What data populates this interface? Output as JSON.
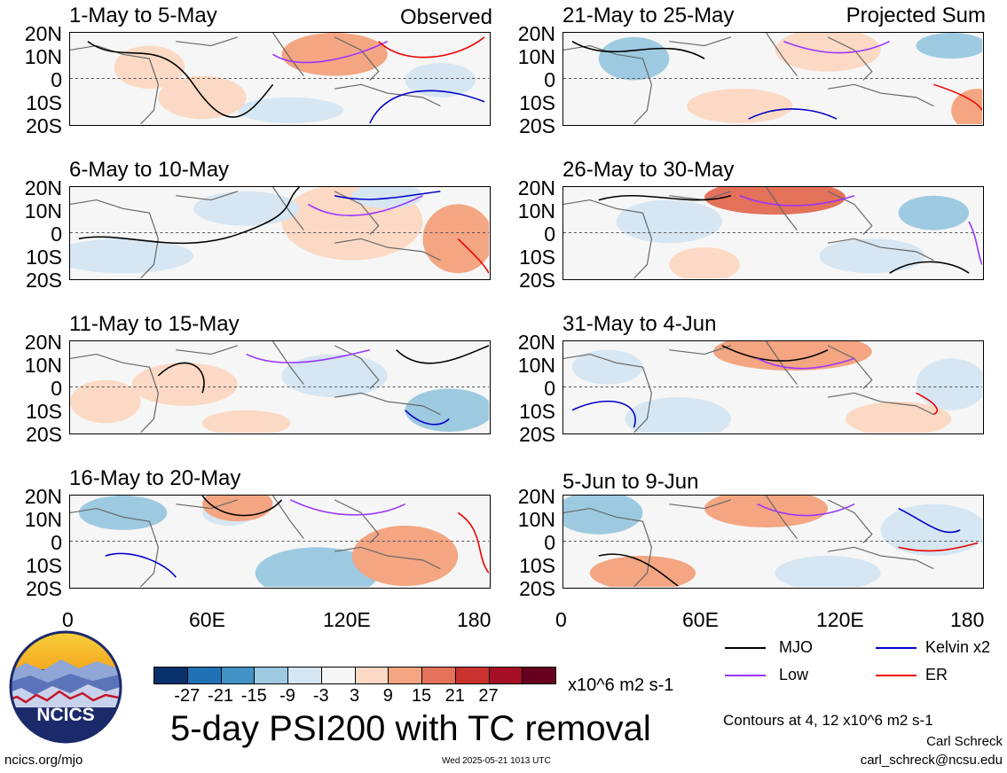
{
  "observed_label": "Observed",
  "projected_label": "Projected Sum",
  "lat_labels": [
    "20N",
    "10N",
    "0",
    "10S",
    "20S"
  ],
  "lon_labels": [
    "0",
    "60E",
    "120E",
    "180"
  ],
  "panels_left": [
    {
      "title": "1-May to 5-May"
    },
    {
      "title": "6-May to 10-May"
    },
    {
      "title": "11-May to 15-May"
    },
    {
      "title": "16-May to 20-May"
    }
  ],
  "panels_right": [
    {
      "title": "21-May to 25-May"
    },
    {
      "title": "26-May to 30-May"
    },
    {
      "title": "31-May to 4-Jun"
    },
    {
      "title": "5-Jun to 9-Jun"
    }
  ],
  "colorbar": {
    "colors": [
      "#08306b",
      "#2171b5",
      "#4292c6",
      "#9ecae1",
      "#d6e6f2",
      "#f7f7f7",
      "#fcd9c4",
      "#f4a582",
      "#e4715a",
      "#c9322f",
      "#a50f25",
      "#67001f"
    ],
    "ticks": [
      "-27",
      "-21",
      "-15",
      "-9",
      "-3",
      "3",
      "9",
      "15",
      "21",
      "27"
    ],
    "units": "x10^6 m2 s-1"
  },
  "legend": {
    "items": [
      {
        "label": "MJO",
        "color": "#000000"
      },
      {
        "label": "Kelvin x2",
        "color": "#0000cc"
      },
      {
        "label": "Low",
        "color": "#9933ff"
      },
      {
        "label": "ER",
        "color": "#ee0000"
      }
    ]
  },
  "main_title": "5-day PSI200 with TC removal",
  "contour_note": "Contours at 4, 12 x10^6 m2 s-1",
  "author": "Carl Schreck",
  "email": "carl_schreck@ncsu.edu",
  "site": "ncics.org/mjo",
  "timestamp": "Wed 2025-05-21 1013 UTC",
  "logo_text": "NCICS"
}
